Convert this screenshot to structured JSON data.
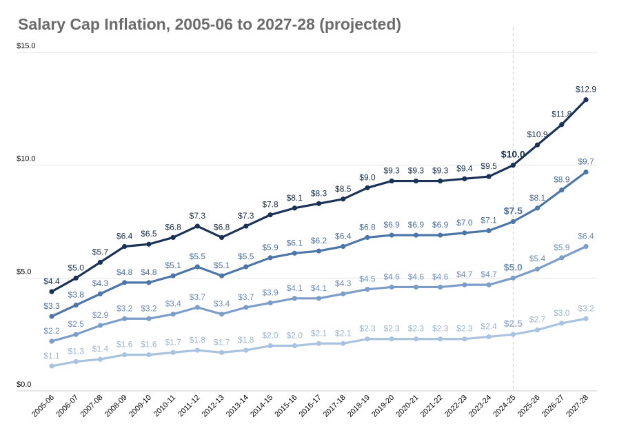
{
  "chart_data": {
    "type": "line",
    "title": "Salary Cap Inflation, 2005-06 to 2027-28 (projected)",
    "xlabel": "",
    "ylabel": "",
    "ylim": [
      0,
      15
    ],
    "y_ticks": [
      "$0.0",
      "$5.0",
      "$10.0",
      "$15.0"
    ],
    "y_tick_values": [
      0,
      5,
      10,
      15
    ],
    "grid": true,
    "legend": "none",
    "marker_line_category": "2024-25",
    "emphasized_category": "2024-25",
    "categories": [
      "2005-06",
      "2006-07",
      "2007-08",
      "2008-09",
      "2009-10",
      "2010-11",
      "2011-12",
      "2012-13",
      "2013-14",
      "2014-15",
      "2015-16",
      "2016-17",
      "2017-18",
      "2018-19",
      "2019-20",
      "2020-21",
      "2021-22",
      "2022-23",
      "2023-24",
      "2024-25",
      "2025-26",
      "2026-27",
      "2027-28"
    ],
    "series": [
      {
        "color": "#1a3256",
        "label_color": "#1a2e4a",
        "values": [
          4.4,
          5.0,
          5.7,
          6.4,
          6.5,
          6.8,
          7.3,
          6.8,
          7.3,
          7.8,
          8.1,
          8.3,
          8.5,
          9.0,
          9.3,
          9.3,
          9.3,
          9.4,
          9.5,
          10.0,
          10.9,
          11.8,
          12.9
        ],
        "labels": [
          "$4.4",
          "$5.0",
          "$5.7",
          "$6.4",
          "$6.5",
          "$6.8",
          "$7.3",
          "$6.8",
          "$7.3",
          "$7.8",
          "$8.1",
          "$8.3",
          "$8.5",
          "$9.0",
          "$9.3",
          "$9.3",
          "$9.3",
          "$9.4",
          "$9.5",
          "$10.0",
          "$10.9",
          "$11.8",
          "$12.9"
        ]
      },
      {
        "color": "#4d76a8",
        "label_color": "#4d6f99",
        "values": [
          3.3,
          3.8,
          4.3,
          4.8,
          4.8,
          5.1,
          5.5,
          5.1,
          5.5,
          5.9,
          6.1,
          6.2,
          6.4,
          6.8,
          6.9,
          6.9,
          6.9,
          7.0,
          7.1,
          7.5,
          8.1,
          8.9,
          9.7
        ],
        "labels": [
          "$3.3",
          "$3.8",
          "$4.3",
          "$4.8",
          "$4.8",
          "$5.1",
          "$5.5",
          "$5.1",
          "$5.5",
          "$5.9",
          "$6.1",
          "$6.2",
          "$6.4",
          "$6.8",
          "$6.9",
          "$6.9",
          "$6.9",
          "$7.0",
          "$7.1",
          "$7.5",
          "$8.1",
          "$8.9",
          "$9.7"
        ]
      },
      {
        "color": "#7b9dc8",
        "label_color": "#6f8fba",
        "values": [
          2.2,
          2.5,
          2.9,
          3.2,
          3.2,
          3.4,
          3.7,
          3.4,
          3.7,
          3.9,
          4.1,
          4.1,
          4.3,
          4.5,
          4.6,
          4.6,
          4.6,
          4.7,
          4.7,
          5.0,
          5.4,
          5.9,
          6.4
        ],
        "labels": [
          "$2.2",
          "$2.5",
          "$2.9",
          "$3.2",
          "$3.2",
          "$3.4",
          "$3.7",
          "$3.4",
          "$3.7",
          "$3.9",
          "$4.1",
          "$4.1",
          "$4.3",
          "$4.5",
          "$4.6",
          "$4.6",
          "$4.6",
          "$4.7",
          "$4.7",
          "$5.0",
          "$5.4",
          "$5.9",
          "$6.4"
        ]
      },
      {
        "color": "#a9c2e0",
        "label_color": "#9fb6d3",
        "values": [
          1.1,
          1.3,
          1.4,
          1.6,
          1.6,
          1.7,
          1.8,
          1.7,
          1.8,
          2.0,
          2.0,
          2.1,
          2.1,
          2.3,
          2.3,
          2.3,
          2.3,
          2.3,
          2.4,
          2.5,
          2.7,
          3.0,
          3.2
        ],
        "labels": [
          "$1.1",
          "$1.3",
          "$1.4",
          "$1.6",
          "$1.6",
          "$1.7",
          "$1.8",
          "$1.7",
          "$1.8",
          "$2.0",
          "$2.0",
          "$2.1",
          "$2.1",
          "$2.3",
          "$2.3",
          "$2.3",
          "$2.3",
          "$2.3",
          "$2.4",
          "$2.5",
          "$2.7",
          "$3.0",
          "$3.2"
        ]
      }
    ]
  }
}
